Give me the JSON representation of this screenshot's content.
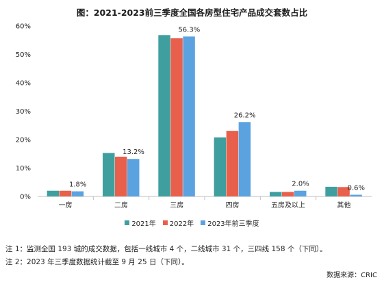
{
  "title": "图：2021-2023前三季度全国各房型住宅产品成交套数占比",
  "chart_data": {
    "type": "bar",
    "categories": [
      "一房",
      "二房",
      "三房",
      "四房",
      "五房及以上",
      "其他"
    ],
    "series": [
      {
        "name": "2021年",
        "color": "#3f9f9f",
        "values": [
          2.0,
          15.3,
          56.8,
          20.8,
          1.6,
          3.4
        ]
      },
      {
        "name": "2022年",
        "color": "#e8604c",
        "values": [
          2.0,
          14.0,
          55.7,
          23.1,
          1.6,
          3.3
        ]
      },
      {
        "name": "2023年前三季度",
        "color": "#5ba3e0",
        "values": [
          1.8,
          13.2,
          56.3,
          26.2,
          2.0,
          0.6
        ]
      }
    ],
    "data_labels": [
      {
        "category": "一房",
        "series": "2023年前三季度",
        "text": "1.8%"
      },
      {
        "category": "二房",
        "series": "2023年前三季度",
        "text": "13.2%"
      },
      {
        "category": "三房",
        "series": "2023年前三季度",
        "text": "56.3%"
      },
      {
        "category": "四房",
        "series": "2023年前三季度",
        "text": "26.2%"
      },
      {
        "category": "五房及以上",
        "series": "2023年前三季度",
        "text": "2.0%"
      },
      {
        "category": "其他",
        "series": "2023年前三季度",
        "text": "0.6%"
      }
    ],
    "ylim": [
      0,
      60
    ],
    "yticks": [
      "0%",
      "10%",
      "20%",
      "30%",
      "40%",
      "50%",
      "60%"
    ],
    "grid": false,
    "legend": "bottom"
  },
  "notes": [
    "注 1：监测全国 193 城的成交数据，包括一线城市 4 个，二线城市 31 个，三四线 158 个（下同）。",
    "注 2：2023 年三季度数据统计截至 9 月 25 日（下同）。"
  ],
  "source": "数据来源：CRIC"
}
